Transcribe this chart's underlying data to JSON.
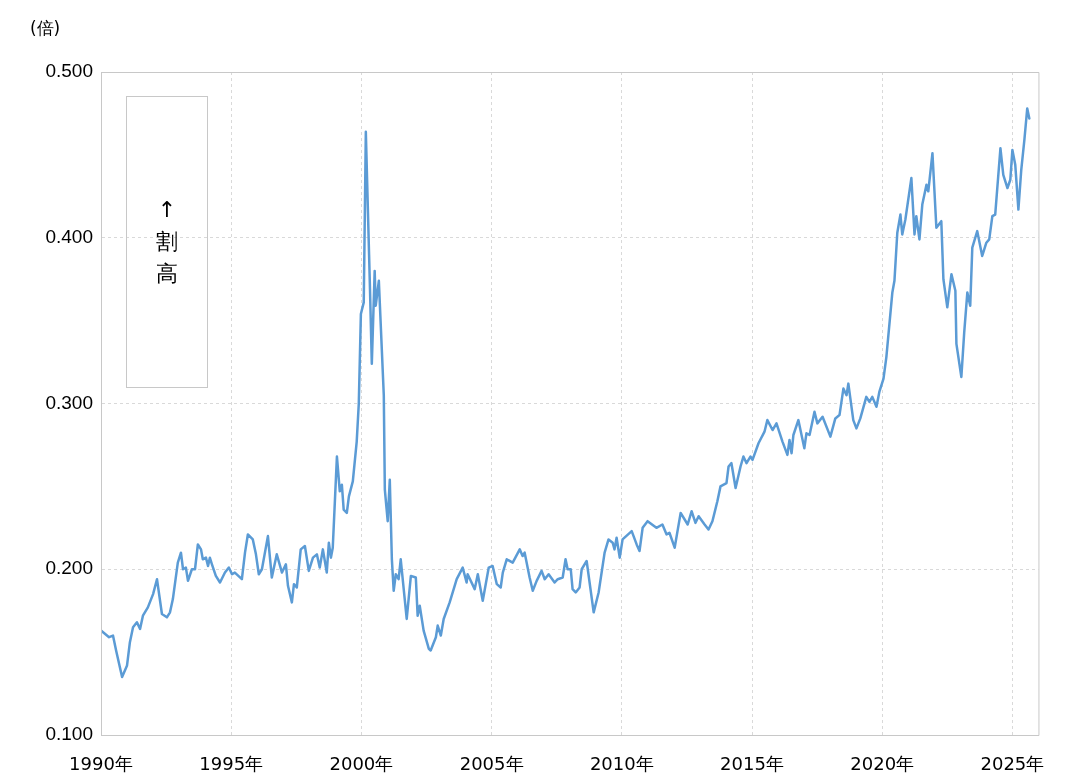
{
  "chart_data": {
    "type": "line",
    "ylabel": "(倍)",
    "annotations": [
      "↑割高"
    ],
    "xlim": [
      1990,
      2026
    ],
    "xticks": [
      {
        "value": 1990,
        "label": "1990年"
      },
      {
        "value": 1995,
        "label": "1995年"
      },
      {
        "value": 2000,
        "label": "2000年"
      },
      {
        "value": 2005,
        "label": "2005年"
      },
      {
        "value": 2010,
        "label": "2010年"
      },
      {
        "value": 2015,
        "label": "2015年"
      },
      {
        "value": 2020,
        "label": "2020年"
      },
      {
        "value": 2025,
        "label": "2025年"
      }
    ],
    "ylim": [
      0.1,
      0.5
    ],
    "yticks": [
      {
        "value": 0.1,
        "label": "0.100"
      },
      {
        "value": 0.2,
        "label": "0.200"
      },
      {
        "value": 0.3,
        "label": "0.300"
      },
      {
        "value": 0.4,
        "label": "0.400"
      },
      {
        "value": 0.5,
        "label": "0.500"
      }
    ],
    "grid": true,
    "legend": false,
    "marker": "none",
    "line_style": "solid",
    "series": [
      {
        "color": "#5b9bd5",
        "x": [
          1990.0,
          1990.08,
          1990.31,
          1990.46,
          1990.58,
          1990.81,
          1991.0,
          1991.11,
          1991.23,
          1991.38,
          1991.5,
          1991.61,
          1991.8,
          1992.0,
          1992.15,
          1992.34,
          1992.53,
          1992.65,
          1992.76,
          1992.95,
          1993.07,
          1993.15,
          1993.26,
          1993.34,
          1993.49,
          1993.61,
          1993.72,
          1993.84,
          1993.91,
          1994.03,
          1994.11,
          1994.18,
          1994.26,
          1994.41,
          1994.57,
          1994.76,
          1994.91,
          1995.03,
          1995.14,
          1995.41,
          1995.53,
          1995.64,
          1995.83,
          1995.95,
          1996.06,
          1996.18,
          1996.41,
          1996.56,
          1996.75,
          1996.95,
          1997.1,
          1997.18,
          1997.33,
          1997.41,
          1997.52,
          1997.67,
          1997.83,
          1997.98,
          1998.14,
          1998.29,
          1998.4,
          1998.52,
          1998.67,
          1998.75,
          1998.83,
          1998.9,
          1999.06,
          1999.17,
          1999.25,
          1999.32,
          1999.44,
          1999.52,
          1999.67,
          1999.82,
          1999.9,
          1999.98,
          2000.09,
          2000.17,
          2000.33,
          2000.4,
          2000.51,
          2000.55,
          2000.67,
          2000.86,
          2000.9,
          2001.01,
          2001.09,
          2001.17,
          2001.24,
          2001.32,
          2001.43,
          2001.51,
          2001.74,
          2001.9,
          2002.09,
          2002.16,
          2002.24,
          2002.39,
          2002.59,
          2002.66,
          2002.86,
          2002.93,
          2003.05,
          2003.16,
          2003.39,
          2003.66,
          2003.89,
          2004.04,
          2004.08,
          2004.35,
          2004.47,
          2004.66,
          2004.89,
          2005.04,
          2005.2,
          2005.35,
          2005.43,
          2005.58,
          2005.81,
          2006.08,
          2006.19,
          2006.27,
          2006.46,
          2006.58,
          2006.73,
          2006.92,
          2007.04,
          2007.19,
          2007.42,
          2007.54,
          2007.73,
          2007.84,
          2007.92,
          2008.04,
          2008.11,
          2008.23,
          2008.38,
          2008.46,
          2008.65,
          2008.92,
          2009.11,
          2009.34,
          2009.49,
          2009.65,
          2009.72,
          2009.8,
          2009.92,
          2010.03,
          2010.38,
          2010.57,
          2010.68,
          2010.8,
          2010.99,
          2011.33,
          2011.56,
          2011.72,
          2011.83,
          2012.03,
          2012.26,
          2012.53,
          2012.68,
          2012.83,
          2012.95,
          2013.18,
          2013.33,
          2013.48,
          2013.67,
          2013.79,
          2014.02,
          2014.1,
          2014.21,
          2014.37,
          2014.56,
          2014.67,
          2014.79,
          2014.94,
          2015.02,
          2015.25,
          2015.48,
          2015.59,
          2015.79,
          2015.94,
          2016.17,
          2016.36,
          2016.44,
          2016.52,
          2016.59,
          2016.78,
          2017.01,
          2017.09,
          2017.21,
          2017.4,
          2017.51,
          2017.71,
          2018.01,
          2018.2,
          2018.36,
          2018.51,
          2018.63,
          2018.7,
          2018.89,
          2019.01,
          2019.16,
          2019.39,
          2019.51,
          2019.62,
          2019.78,
          2019.89,
          2020.05,
          2020.16,
          2020.39,
          2020.47,
          2020.58,
          2020.7,
          2020.77,
          2020.89,
          2021.12,
          2021.24,
          2021.31,
          2021.43,
          2021.54,
          2021.7,
          2021.77,
          2021.93,
          2022.08,
          2022.27,
          2022.35,
          2022.5,
          2022.66,
          2022.81,
          2022.85,
          2023.04,
          2023.15,
          2023.27,
          2023.38,
          2023.46,
          2023.65,
          2023.84,
          2024.0,
          2024.11,
          2024.23,
          2024.34,
          2024.54,
          2024.65,
          2024.81,
          2024.92,
          2025.0,
          2025.11,
          2025.23,
          2025.34,
          2025.46,
          2025.57,
          2025.65
        ],
        "values": [
          0.163,
          0.162,
          0.159,
          0.16,
          0.151,
          0.135,
          0.142,
          0.156,
          0.165,
          0.168,
          0.164,
          0.172,
          0.177,
          0.185,
          0.194,
          0.173,
          0.171,
          0.174,
          0.182,
          0.204,
          0.21,
          0.2,
          0.201,
          0.193,
          0.2,
          0.2,
          0.215,
          0.212,
          0.206,
          0.207,
          0.202,
          0.207,
          0.203,
          0.196,
          0.192,
          0.198,
          0.201,
          0.197,
          0.198,
          0.194,
          0.21,
          0.221,
          0.218,
          0.209,
          0.197,
          0.2,
          0.22,
          0.195,
          0.209,
          0.198,
          0.203,
          0.19,
          0.18,
          0.191,
          0.189,
          0.212,
          0.214,
          0.199,
          0.207,
          0.209,
          0.201,
          0.212,
          0.198,
          0.216,
          0.207,
          0.213,
          0.268,
          0.247,
          0.251,
          0.236,
          0.234,
          0.244,
          0.253,
          0.277,
          0.3,
          0.354,
          0.361,
          0.464,
          0.369,
          0.324,
          0.38,
          0.359,
          0.374,
          0.305,
          0.248,
          0.229,
          0.254,
          0.206,
          0.187,
          0.197,
          0.194,
          0.206,
          0.17,
          0.196,
          0.195,
          0.172,
          0.178,
          0.163,
          0.152,
          0.151,
          0.159,
          0.166,
          0.16,
          0.17,
          0.18,
          0.194,
          0.201,
          0.192,
          0.197,
          0.188,
          0.197,
          0.181,
          0.201,
          0.202,
          0.191,
          0.189,
          0.198,
          0.206,
          0.204,
          0.212,
          0.208,
          0.21,
          0.195,
          0.187,
          0.193,
          0.199,
          0.194,
          0.197,
          0.192,
          0.194,
          0.195,
          0.206,
          0.2,
          0.2,
          0.188,
          0.186,
          0.189,
          0.2,
          0.205,
          0.174,
          0.186,
          0.21,
          0.218,
          0.216,
          0.212,
          0.219,
          0.207,
          0.218,
          0.223,
          0.215,
          0.211,
          0.225,
          0.229,
          0.225,
          0.227,
          0.221,
          0.222,
          0.213,
          0.234,
          0.227,
          0.235,
          0.228,
          0.232,
          0.227,
          0.224,
          0.229,
          0.241,
          0.25,
          0.252,
          0.262,
          0.264,
          0.249,
          0.262,
          0.268,
          0.264,
          0.268,
          0.266,
          0.276,
          0.283,
          0.29,
          0.284,
          0.288,
          0.277,
          0.269,
          0.278,
          0.27,
          0.281,
          0.29,
          0.273,
          0.282,
          0.281,
          0.295,
          0.288,
          0.292,
          0.28,
          0.291,
          0.293,
          0.309,
          0.305,
          0.312,
          0.29,
          0.285,
          0.291,
          0.304,
          0.301,
          0.304,
          0.298,
          0.307,
          0.315,
          0.328,
          0.367,
          0.374,
          0.403,
          0.414,
          0.402,
          0.411,
          0.436,
          0.402,
          0.413,
          0.399,
          0.42,
          0.432,
          0.428,
          0.451,
          0.406,
          0.41,
          0.375,
          0.358,
          0.378,
          0.368,
          0.336,
          0.316,
          0.343,
          0.367,
          0.359,
          0.394,
          0.404,
          0.389,
          0.397,
          0.399,
          0.413,
          0.414,
          0.454,
          0.438,
          0.43,
          0.435,
          0.453,
          0.444,
          0.417,
          0.441,
          0.459,
          0.478,
          0.472
        ]
      }
    ]
  }
}
